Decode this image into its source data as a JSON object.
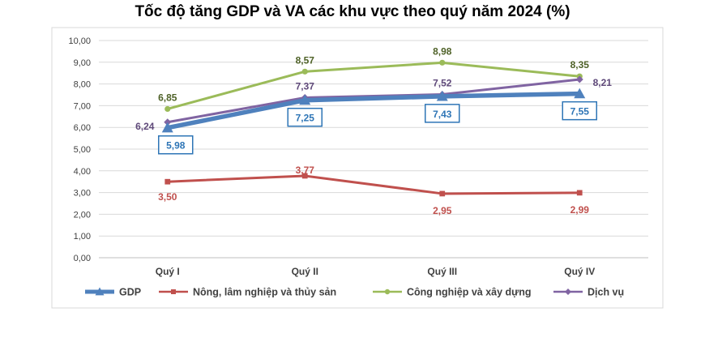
{
  "chart_data": {
    "type": "line",
    "title": "Tốc độ tăng GDP và VA các khu vực theo quý năm 2024 (%)",
    "categories": [
      "Quý I",
      "Quý II",
      "Quý III",
      "Quý IV"
    ],
    "y_ticks": [
      "0,00",
      "1,00",
      "2,00",
      "3,00",
      "4,00",
      "5,00",
      "6,00",
      "7,00",
      "8,00",
      "9,00",
      "10,00"
    ],
    "ylim": [
      0,
      10
    ],
    "grid": true,
    "legend_position": "bottom",
    "series": [
      {
        "name": "GDP",
        "values": [
          5.98,
          7.25,
          7.43,
          7.55
        ],
        "labels": [
          "5,98",
          "7,25",
          "7,43",
          "7,55"
        ],
        "color": "#4F81BD",
        "label_color": "#2E75B6",
        "marker": "triangle"
      },
      {
        "name": "Nông, lâm nghiệp và thủy sản",
        "values": [
          3.5,
          3.77,
          2.95,
          2.99
        ],
        "labels": [
          "3,50",
          "3,77",
          "2,95",
          "2,99"
        ],
        "color": "#C0504D",
        "label_color": "#C0504D",
        "marker": "square"
      },
      {
        "name": "Công nghiệp và xây dựng",
        "values": [
          6.85,
          8.57,
          8.98,
          8.35
        ],
        "labels": [
          "6,85",
          "8,57",
          "8,98",
          "8,35"
        ],
        "color": "#9BBB59",
        "label_color": "#4F6228",
        "marker": "circle"
      },
      {
        "name": "Dịch vụ",
        "values": [
          6.24,
          7.37,
          7.52,
          8.21
        ],
        "labels": [
          "6,24",
          "7,37",
          "7,52",
          "8,21"
        ],
        "color": "#8064A2",
        "label_color": "#5F497A",
        "marker": "diamond"
      }
    ]
  }
}
